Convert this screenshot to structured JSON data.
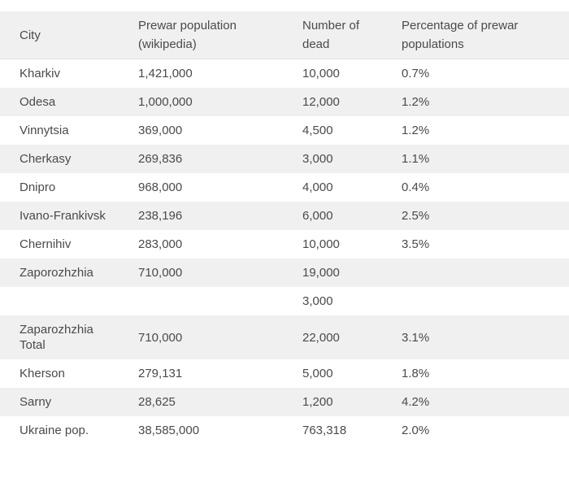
{
  "page": {
    "background_color": "#ffffff",
    "text_color": "#4a4a4a",
    "header_bg_color": "#f0f0f0",
    "stripe_bg_color": "#f0f0f0"
  },
  "chart_data": {
    "type": "table",
    "columns": [
      "City",
      "Prewar population (wikipedia)",
      "Number of dead",
      "Percentage of prewar populations"
    ],
    "rows": [
      [
        "Kharkiv",
        "1,421,000",
        "10,000",
        "0.7%"
      ],
      [
        "Odesa",
        "1,000,000",
        "12,000",
        "1.2%"
      ],
      [
        "Vinnytsia",
        "369,000",
        "4,500",
        "1.2%"
      ],
      [
        "Cherkasy",
        "269,836",
        "3,000",
        "1.1%"
      ],
      [
        "Dnipro",
        "968,000",
        "4,000",
        "0.4%"
      ],
      [
        "Ivano-Frankivsk",
        "238,196",
        "6,000",
        "2.5%"
      ],
      [
        "Chernihiv",
        "283,000",
        "10,000",
        "3.5%"
      ],
      [
        "Zaporozhzhia",
        "710,000",
        "19,000",
        ""
      ],
      [
        "",
        "",
        "3,000",
        ""
      ],
      [
        "Zaparozhzhia Total",
        "710,000",
        "22,000",
        "3.1%"
      ],
      [
        "Kherson",
        "279,131",
        "5,000",
        "1.8%"
      ],
      [
        "Sarny",
        "28,625",
        "1,200",
        "4.2%"
      ],
      [
        "Ukraine pop.",
        "38,585,000",
        "763,318",
        "2.0%"
      ]
    ]
  }
}
